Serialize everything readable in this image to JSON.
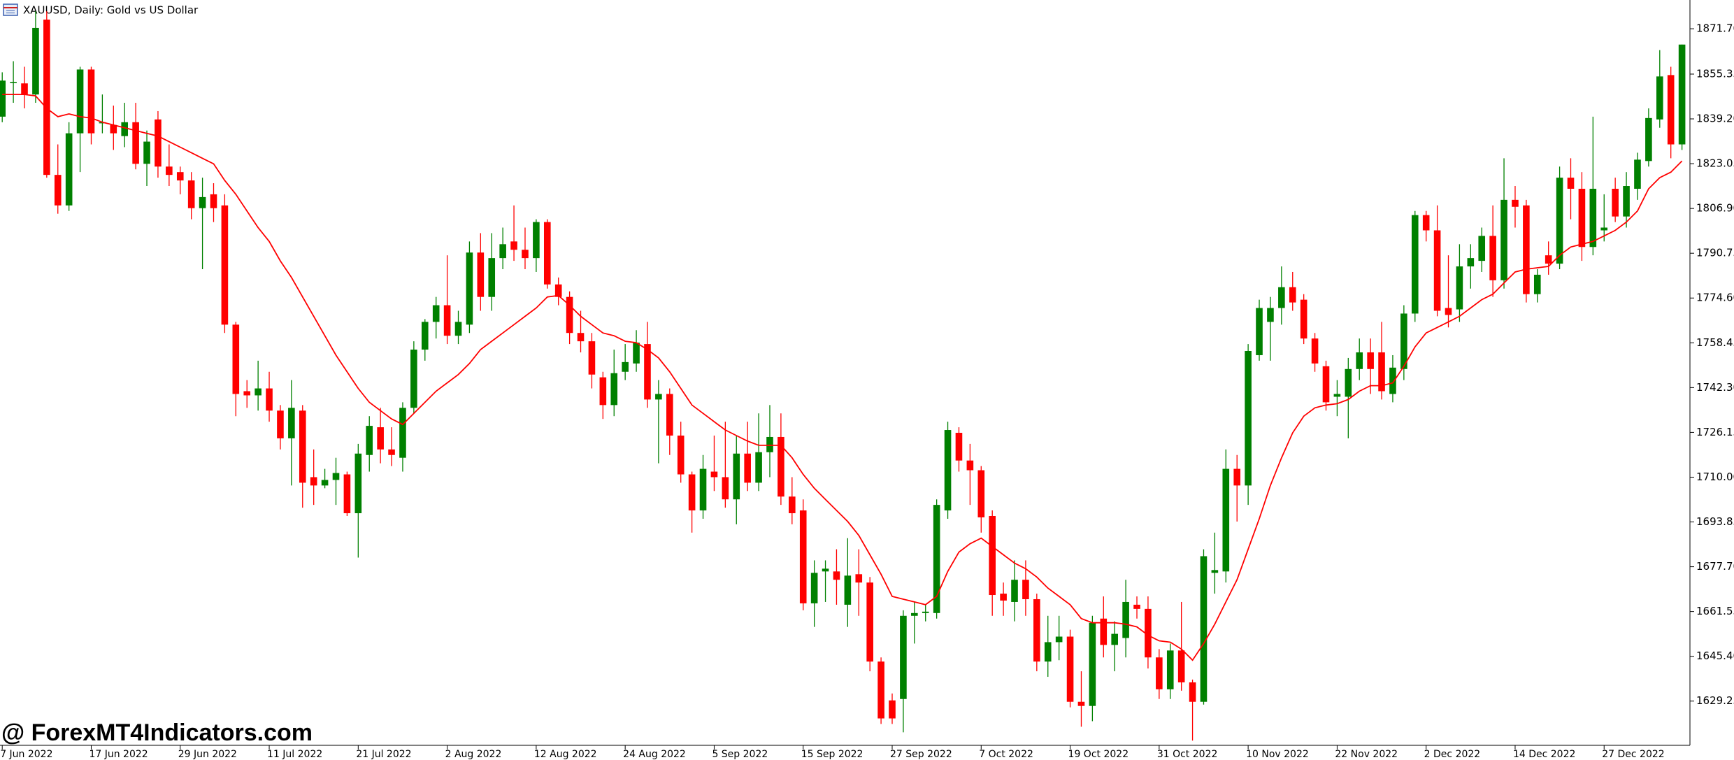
{
  "chart_data": {
    "type": "candlestick",
    "title": "XAUUSD, Daily:  Gold vs US Dollar",
    "watermark": "@ ForexMT4Indicators.com",
    "up_color": "#008000",
    "down_color": "#ff0000",
    "ma_color": "#ff0000",
    "ylim": [
      1613.3,
      1882.07
    ],
    "yticks": [
      {
        "value": 1871.7,
        "label": "1871.70"
      },
      1855.35,
      {
        "value": 1839.2,
        "label": "1839.20"
      },
      1823.05,
      {
        "value": 1806.9,
        "label": "1806.90"
      },
      1790.75,
      {
        "value": 1774.6,
        "label": "1774.60"
      },
      1758.45,
      {
        "value": 1742.3,
        "label": "1742.30"
      },
      1726.15,
      {
        "value": 1710.0,
        "label": "1710.00"
      },
      1693.85,
      {
        "value": 1677.7,
        "label": "1677.70"
      },
      1661.55,
      {
        "value": 1645.4,
        "label": "1645.40"
      },
      1629.25
    ],
    "categories": [
      "7 Jun 2022",
      null,
      null,
      null,
      null,
      null,
      null,
      null,
      "17 Jun 2022",
      null,
      null,
      null,
      null,
      null,
      null,
      null,
      "29 Jun 2022",
      null,
      null,
      null,
      null,
      null,
      null,
      null,
      "11 Jul 2022",
      null,
      null,
      null,
      null,
      null,
      null,
      null,
      "21 Jul 2022",
      null,
      null,
      null,
      null,
      null,
      null,
      null,
      "2 Aug 2022",
      null,
      null,
      null,
      null,
      null,
      null,
      null,
      "12 Aug 2022",
      null,
      null,
      null,
      null,
      null,
      null,
      null,
      "24 Aug 2022",
      null,
      null,
      null,
      null,
      null,
      null,
      null,
      "5 Sep 2022",
      null,
      null,
      null,
      null,
      null,
      null,
      null,
      "15 Sep 2022",
      null,
      null,
      null,
      null,
      null,
      null,
      null,
      "27 Sep 2022",
      null,
      null,
      null,
      null,
      null,
      null,
      null,
      "7 Oct 2022",
      null,
      null,
      null,
      null,
      null,
      null,
      null,
      "19 Oct 2022",
      null,
      null,
      null,
      null,
      null,
      null,
      null,
      "31 Oct 2022",
      null,
      null,
      null,
      null,
      null,
      null,
      null,
      "10 Nov 2022",
      null,
      null,
      null,
      null,
      null,
      null,
      null,
      "22 Nov 2022",
      null,
      null,
      null,
      null,
      null,
      null,
      null,
      "2 Dec 2022",
      null,
      null,
      null,
      null,
      null,
      null,
      null,
      "14 Dec 2022",
      null,
      null,
      null,
      null,
      null,
      null,
      null,
      "27 Dec 2022",
      null,
      null,
      null,
      null,
      null,
      null,
      null
    ],
    "open": [
      1840,
      1852.5,
      1852,
      1848,
      1875,
      1819,
      1808,
      1834,
      1857,
      1838,
      1837,
      1833,
      1838,
      1823,
      1839,
      1822,
      1820,
      1817,
      1807,
      1812,
      1808,
      1765,
      1741,
      1739.5,
      1742,
      1734,
      1724,
      1734,
      1710,
      1707,
      1709,
      1711,
      1697,
      1718,
      1728,
      1720,
      1717,
      1735,
      1756,
      1766,
      1772,
      1761,
      1765,
      1791,
      1775,
      1789,
      1795,
      1792,
      1789,
      1802,
      1779.5,
      1775,
      1762,
      1759,
      1746,
      1736,
      1748,
      1751,
      1758,
      1738,
      1740,
      1725,
      1711,
      1698,
      1712,
      1710,
      1702,
      1718.5,
      1708,
      1719,
      1724.5,
      1703,
      1698,
      1664.5,
      1676,
      1676,
      1664,
      1675,
      1672,
      1643.5,
      1629.5,
      1630,
      1660,
      1661,
      1661,
      1698,
      1726,
      1716,
      1712.5,
      1696,
      1668,
      1665,
      1673,
      1666,
      1643.5,
      1650.5,
      1652.5,
      1629,
      1627.5,
      1659,
      1649.5,
      1652,
      1664,
      1662.5,
      1645,
      1633.5,
      1647.5,
      1636,
      1629,
      1675.5,
      1676,
      1713,
      1707,
      1754,
      1766,
      1771,
      1778.5,
      1774,
      1760,
      1750,
      1739,
      1739,
      1749,
      1755,
      1755,
      1740,
      1749,
      1769,
      1804.5,
      1799,
      1771,
      1770.5,
      1786,
      1788,
      1797,
      1781,
      1810,
      1808,
      1776,
      1790,
      1787,
      1818,
      1814,
      1793,
      1799,
      1814,
      1804,
      1814,
      1824,
      1839,
      1855,
      1830
    ],
    "high": [
      1856,
      1860,
      1858,
      1878,
      1878,
      1830,
      1838,
      1858,
      1858,
      1848,
      1844,
      1845,
      1845,
      1835,
      1842,
      1830,
      1822,
      1820,
      1818,
      1816,
      1812,
      1766,
      1745,
      1752,
      1748,
      1736,
      1745,
      1736,
      1720,
      1713,
      1717,
      1712,
      1722,
      1732,
      1735,
      1728,
      1737,
      1759,
      1767,
      1775,
      1790,
      1770,
      1795,
      1798,
      1798,
      1800,
      1808,
      1800,
      1803,
      1803,
      1782,
      1777,
      1770,
      1762,
      1748,
      1756,
      1758,
      1763,
      1766,
      1745,
      1742,
      1730,
      1712,
      1718,
      1725,
      1730,
      1725,
      1730,
      1733,
      1736,
      1733,
      1710,
      1702,
      1680,
      1680,
      1684,
      1688,
      1684,
      1674,
      1645,
      1632,
      1662,
      1665,
      1664,
      1702,
      1730,
      1728,
      1722,
      1714,
      1698,
      1672,
      1680,
      1680,
      1668,
      1660,
      1660,
      1655,
      1640,
      1660,
      1667,
      1658,
      1673,
      1667,
      1667,
      1648,
      1650,
      1665,
      1637,
      1684,
      1690,
      1720,
      1718,
      1758,
      1774,
      1775,
      1786,
      1784,
      1776,
      1762,
      1752,
      1745,
      1753,
      1760,
      1760,
      1766,
      1754,
      1772,
      1806,
      1806,
      1808,
      1790,
      1794,
      1794,
      1800,
      1808,
      1825,
      1815,
      1810,
      1785,
      1795,
      1822,
      1825,
      1820,
      1840,
      1812,
      1818,
      1820,
      1827,
      1843,
      1864,
      1858,
      1866
    ],
    "low": [
      1838,
      1845,
      1843,
      1845,
      1818,
      1805,
      1806,
      1820,
      1830,
      1834,
      1828,
      1829,
      1821,
      1815,
      1818,
      1815,
      1812,
      1803,
      1785,
      1802,
      1762,
      1732,
      1735,
      1734,
      1730,
      1720,
      1707,
      1699,
      1700,
      1706,
      1700,
      1696,
      1681,
      1712,
      1715,
      1714,
      1712,
      1733,
      1752,
      1760,
      1758,
      1758,
      1762,
      1770,
      1770,
      1785,
      1788,
      1785,
      1784,
      1778,
      1772,
      1758,
      1755,
      1742,
      1731,
      1732,
      1745,
      1748,
      1735,
      1715,
      1718,
      1708,
      1690,
      1695,
      1705,
      1699,
      1693,
      1705,
      1705,
      1710,
      1700,
      1693,
      1662,
      1656,
      1665,
      1664,
      1656,
      1660,
      1640,
      1621,
      1621,
      1618,
      1650,
      1658,
      1659,
      1695,
      1712,
      1700,
      1690,
      1660,
      1660,
      1658,
      1660,
      1640,
      1638,
      1644,
      1627,
      1620,
      1622,
      1645,
      1640,
      1645,
      1659,
      1641,
      1630,
      1630,
      1633,
      1615,
      1628,
      1668,
      1672,
      1694,
      1700,
      1752,
      1752,
      1765,
      1770,
      1758,
      1748,
      1734,
      1732,
      1724,
      1745,
      1740,
      1738,
      1737,
      1745,
      1766,
      1795,
      1768,
      1764,
      1766,
      1778,
      1784,
      1775,
      1778,
      1800,
      1773,
      1773,
      1783,
      1785,
      1803,
      1788,
      1790,
      1795,
      1802,
      1800,
      1810,
      1822,
      1836,
      1825,
      1828
    ],
    "close": [
      1853,
      1852.5,
      1848,
      1872,
      1819,
      1808,
      1834,
      1857,
      1834,
      1838,
      1834,
      1838,
      1823,
      1831,
      1822,
      1819,
      1817,
      1807,
      1811,
      1807,
      1765,
      1740,
      1739.5,
      1742,
      1734,
      1724,
      1735,
      1708,
      1707,
      1709,
      1711.5,
      1697,
      1718.5,
      1728.5,
      1720,
      1718,
      1735,
      1756,
      1766,
      1772,
      1761,
      1766,
      1791,
      1775,
      1789,
      1794,
      1792,
      1789,
      1802,
      1779.5,
      1775,
      1762,
      1759,
      1747,
      1736,
      1747.5,
      1751.5,
      1758.5,
      1738,
      1740,
      1725,
      1711,
      1698,
      1713,
      1710,
      1702,
      1718.5,
      1708,
      1719,
      1724.5,
      1703,
      1697,
      1664.5,
      1675.5,
      1677,
      1673,
      1674.5,
      1672,
      1643.5,
      1623,
      1623,
      1660,
      1661,
      1661.5,
      1700,
      1727,
      1716,
      1712.5,
      1695.5,
      1667.5,
      1665.5,
      1673,
      1666,
      1643.5,
      1650.5,
      1652.5,
      1629,
      1627.5,
      1657.5,
      1649.5,
      1653.5,
      1665,
      1662.5,
      1645,
      1633.5,
      1647.5,
      1636,
      1629,
      1681.5,
      1676.5,
      1713,
      1707,
      1755.5,
      1771,
      1771,
      1778.5,
      1773,
      1760,
      1751,
      1737,
      1740,
      1749,
      1755,
      1749,
      1741,
      1749.5,
      1769,
      1804.5,
      1799,
      1770,
      1768.5,
      1786,
      1789,
      1797,
      1781,
      1810,
      1807.5,
      1776,
      1783,
      1787,
      1818,
      1814,
      1793,
      1814,
      1800,
      1804,
      1815,
      1824.5,
      1839.5,
      1854.5,
      1830,
      1866
    ],
    "ma": [
      1848,
      1848,
      1848,
      1847.5,
      1843,
      1840,
      1841,
      1840,
      1839.5,
      1838,
      1837,
      1836,
      1835,
      1834,
      1833,
      1831,
      1829,
      1827,
      1825,
      1823,
      1817,
      1812,
      1806,
      1800,
      1795,
      1788,
      1782,
      1775,
      1768,
      1761,
      1754,
      1748,
      1742,
      1737,
      1734,
      1731,
      1729,
      1733,
      1737,
      1741,
      1744,
      1747,
      1751,
      1756,
      1759,
      1762,
      1765,
      1768,
      1771,
      1775,
      1775.5,
      1772,
      1768,
      1765,
      1762,
      1761,
      1759,
      1758.5,
      1756,
      1753,
      1748,
      1742,
      1736,
      1733,
      1730,
      1727,
      1725,
      1723,
      1721.5,
      1721.5,
      1721.5,
      1717,
      1711,
      1706,
      1702,
      1698,
      1694,
      1689,
      1682,
      1675,
      1667,
      1666,
      1665,
      1664,
      1667,
      1676,
      1683,
      1686,
      1688,
      1685,
      1682,
      1679,
      1677,
      1674,
      1670,
      1667,
      1664,
      1659,
      1657.5,
      1657.5,
      1657.5,
      1657,
      1656,
      1653,
      1651,
      1650.5,
      1648,
      1644,
      1650,
      1657,
      1665,
      1673,
      1684,
      1695,
      1707,
      1717,
      1726,
      1732,
      1735,
      1736,
      1736.5,
      1738,
      1741,
      1743,
      1743,
      1744,
      1750,
      1757,
      1762,
      1764,
      1766,
      1768,
      1771,
      1774,
      1776,
      1780,
      1784,
      1785,
      1785.5,
      1786,
      1790,
      1793,
      1794,
      1795,
      1797,
      1799,
      1802,
      1806,
      1814,
      1818,
      1820,
      1824
    ]
  }
}
